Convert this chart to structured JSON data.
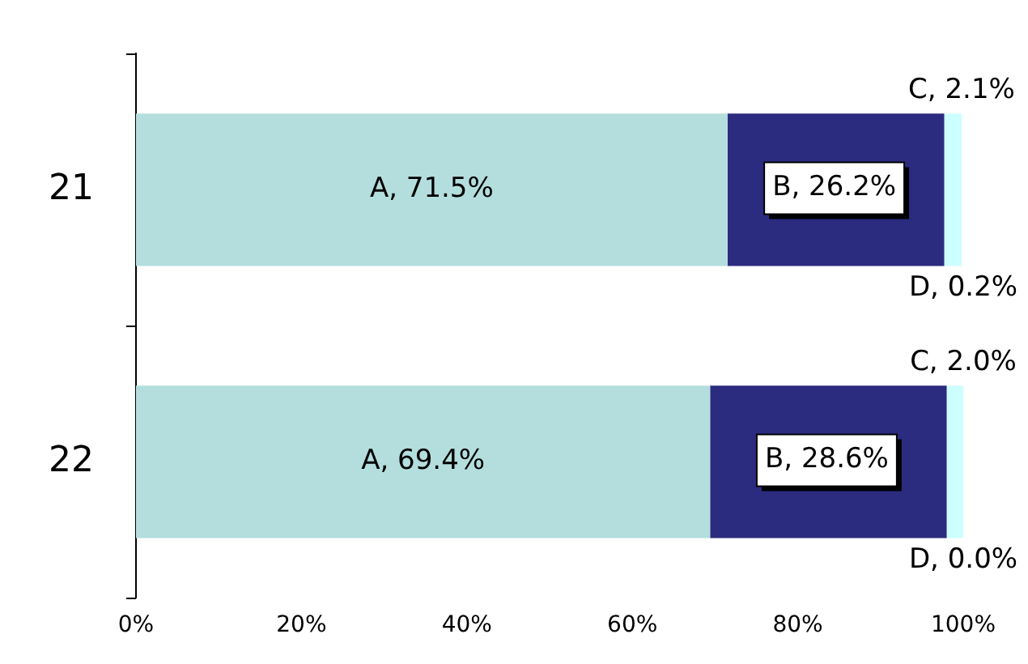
{
  "chart_data": {
    "type": "bar",
    "orientation": "horizontal",
    "stacked": true,
    "categories": [
      "21",
      "22"
    ],
    "series": [
      {
        "color": "#b4dede",
        "values": [
          71.5,
          69.4
        ],
        "value_labels": [
          "A, 71.5%",
          "A, 69.4%"
        ]
      },
      {
        "color": "#2b2b7f",
        "values": [
          26.2,
          28.6
        ],
        "value_labels": [
          "B, 26.2%",
          "B, 28.6%"
        ]
      },
      {
        "color": "#ccffff",
        "values": [
          2.1,
          2.0
        ],
        "value_labels": [
          "C, 2.1%",
          "C, 2.0%"
        ]
      },
      {
        "color": "#ffffff",
        "values": [
          0.2,
          0.0
        ],
        "value_labels": [
          "D, 0.2%",
          "D, 0.0%"
        ]
      }
    ],
    "xlim": [
      0,
      100
    ],
    "xticks": [
      {
        "value": 0,
        "label": "0%"
      },
      {
        "value": 20,
        "label": "20%"
      },
      {
        "value": 40,
        "label": "40%"
      },
      {
        "value": 60,
        "label": "60%"
      },
      {
        "value": 80,
        "label": "80%"
      },
      {
        "value": 100,
        "label": "100%"
      }
    ],
    "grid": false,
    "legend": false
  }
}
